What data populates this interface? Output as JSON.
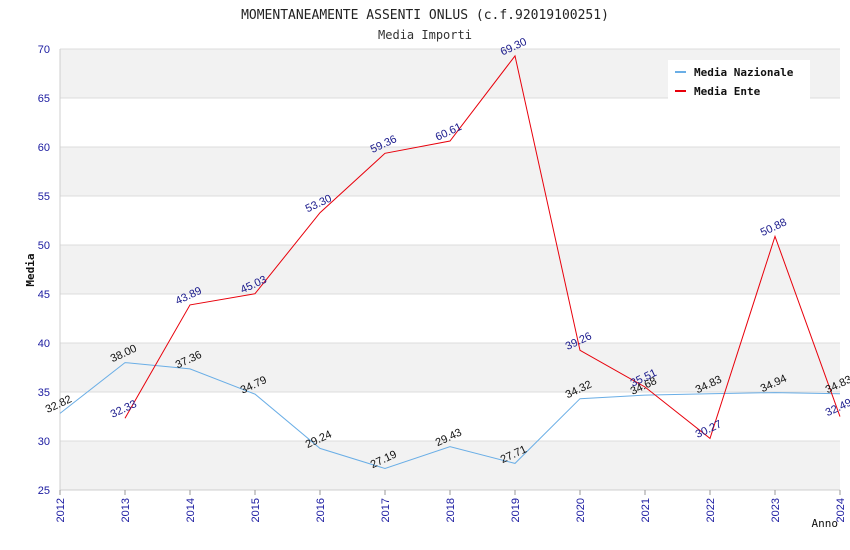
{
  "chart_data": {
    "type": "line",
    "title": "MOMENTANEAMENTE ASSENTI ONLUS (c.f.92019100251)",
    "subtitle": "Media Importi",
    "xlabel": "Anno",
    "ylabel": "Media",
    "ylim": [
      25,
      70
    ],
    "yticks": [
      "25",
      "30",
      "35",
      "40",
      "45",
      "50",
      "55",
      "60",
      "65",
      "70"
    ],
    "categories": [
      "2012",
      "2013",
      "2014",
      "2015",
      "2016",
      "2017",
      "2018",
      "2019",
      "2020",
      "2021",
      "2022",
      "2023",
      "2024"
    ],
    "grid": true,
    "legend_position": "top-right",
    "series": [
      {
        "name": "Media Nazionale",
        "color": "#6aaee6",
        "values": [
          32.82,
          38.0,
          37.36,
          34.79,
          29.24,
          27.19,
          29.43,
          27.71,
          34.32,
          34.68,
          34.83,
          34.94,
          34.83
        ],
        "labels": [
          "32.82",
          "38.00",
          "37.36",
          "34.79",
          "29.24",
          "27.19",
          "29.43",
          "27.71",
          "34.32",
          "34.68",
          "34.83",
          "34.94",
          "34.83"
        ]
      },
      {
        "name": "Media Ente",
        "color": "#e8000b",
        "values": [
          null,
          32.33,
          43.89,
          45.03,
          53.3,
          59.36,
          60.61,
          69.3,
          39.26,
          35.51,
          30.27,
          50.88,
          32.49
        ],
        "labels": [
          "",
          "32.33",
          "43.89",
          "45.03",
          "53.30",
          "59.36",
          "60.61",
          "69.30",
          "39.26",
          "35.51",
          "30.27",
          "50.88",
          "32.49"
        ]
      }
    ]
  }
}
